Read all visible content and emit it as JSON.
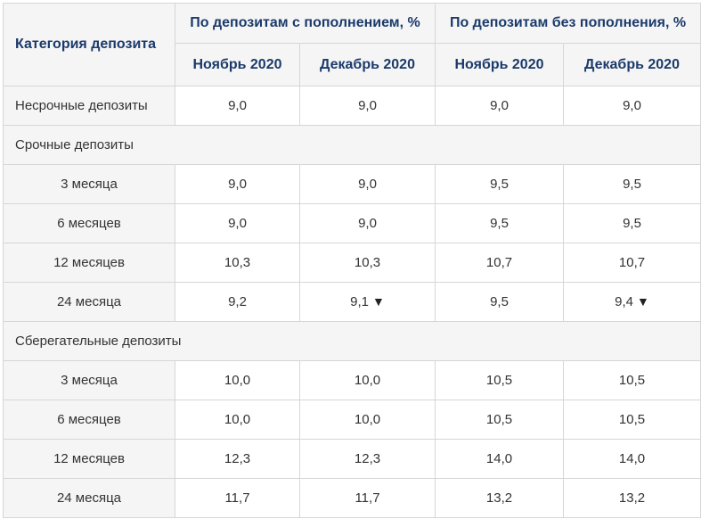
{
  "header": {
    "category": "Категория депозита",
    "group_with_replenishment": "По депозитам с пополнением, %",
    "group_without_replenishment": "По депозитам без пополнения, %",
    "months": [
      "Ноябрь 2020",
      "Декабрь 2020",
      "Ноябрь 2020",
      "Декабрь 2020"
    ]
  },
  "rows": {
    "demand": {
      "label": "Несрочные депозиты",
      "values": [
        "9,0",
        "9,0",
        "9,0",
        "9,0"
      ]
    },
    "term_section": "Срочные депозиты",
    "term": [
      {
        "label": "3 месяца",
        "values": [
          "9,0",
          "9,0",
          "9,5",
          "9,5"
        ]
      },
      {
        "label": "6 месяцев",
        "values": [
          "9,0",
          "9,0",
          "9,5",
          "9,5"
        ]
      },
      {
        "label": "12 месяцев",
        "values": [
          "10,3",
          "10,3",
          "10,7",
          "10,7"
        ]
      },
      {
        "label": "24 месяца",
        "values": [
          "9,2",
          "9,1",
          "9,5",
          "9,4"
        ]
      }
    ],
    "savings_section": "Сберегательные депозиты",
    "savings": [
      {
        "label": "3 месяца",
        "values": [
          "10,0",
          "10,0",
          "10,5",
          "10,5"
        ]
      },
      {
        "label": "6 месяцев",
        "values": [
          "10,0",
          "10,0",
          "10,5",
          "10,5"
        ]
      },
      {
        "label": "12 месяцев",
        "values": [
          "12,3",
          "12,3",
          "14,0",
          "14,0"
        ]
      },
      {
        "label": "24 месяца",
        "values": [
          "11,7",
          "11,7",
          "13,2",
          "13,2"
        ]
      }
    ]
  },
  "icons": {
    "decrease": "down-triangle-icon"
  },
  "decrease_glyph": "▼",
  "colors": {
    "header_text": "#1b3a6b",
    "header_bg": "#f5f5f5",
    "border": "#d6d6d6"
  }
}
